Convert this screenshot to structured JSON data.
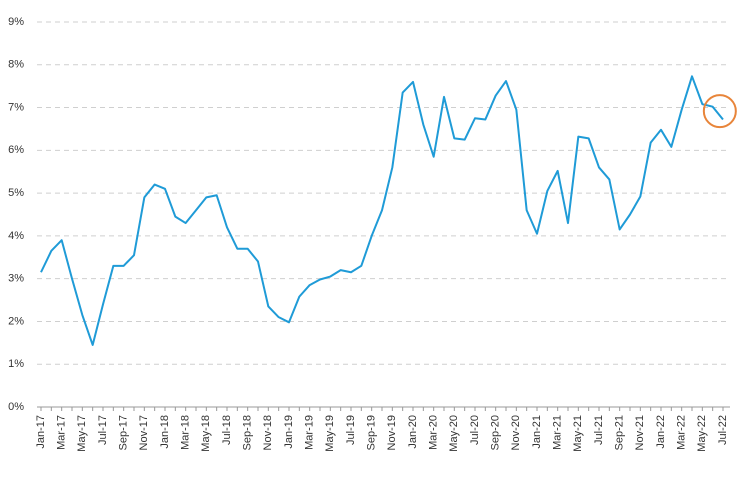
{
  "chart_data": {
    "type": "line",
    "categories": [
      "Jan-17",
      null,
      "Mar-17",
      null,
      "May-17",
      null,
      "Jul-17",
      null,
      "Sep-17",
      null,
      "Nov-17",
      null,
      "Jan-18",
      null,
      "Mar-18",
      null,
      "May-18",
      null,
      "Jul-18",
      null,
      "Sep-18",
      null,
      "Nov-18",
      null,
      "Jan-19",
      null,
      "Mar-19",
      null,
      "May-19",
      null,
      "Jul-19",
      null,
      "Sep-19",
      null,
      "Nov-19",
      null,
      "Jan-20",
      null,
      "Mar-20",
      null,
      "May-20",
      null,
      "Jul-20",
      null,
      "Sep-20",
      null,
      "Nov-20",
      null,
      "Jan-21",
      null,
      "Mar-21",
      null,
      "May-21",
      null,
      "Jul-21",
      null,
      "Sep-21",
      null,
      "Nov-21",
      null,
      "Jan-22",
      null,
      "Mar-22",
      null,
      "May-22",
      null,
      "Jul-22"
    ],
    "values": [
      3.15,
      3.65,
      3.9,
      3.0,
      2.15,
      1.45,
      2.4,
      3.3,
      3.3,
      3.55,
      4.9,
      5.2,
      5.1,
      4.45,
      4.3,
      4.6,
      4.9,
      4.95,
      4.2,
      3.7,
      3.7,
      3.4,
      2.35,
      2.1,
      1.98,
      2.58,
      2.85,
      2.98,
      3.05,
      3.2,
      3.15,
      3.3,
      4.0,
      4.6,
      5.6,
      7.35,
      7.6,
      6.6,
      5.85,
      7.25,
      6.28,
      6.25,
      6.75,
      6.72,
      7.28,
      7.62,
      6.95,
      4.6,
      4.05,
      5.05,
      5.52,
      4.3,
      6.32,
      6.28,
      5.6,
      5.32,
      4.15,
      4.5,
      4.92,
      6.18,
      6.48,
      6.08,
      6.95,
      7.73,
      7.08,
      7.02,
      6.72
    ],
    "color": "#1f9bd7",
    "highlight_color": "#e8853a",
    "ylim": [
      0,
      9
    ],
    "yticks": [
      {
        "value": 0,
        "label": "0%"
      },
      {
        "value": 1,
        "label": "1%"
      },
      {
        "value": 2,
        "label": "2%"
      },
      {
        "value": 3,
        "label": "3%"
      },
      {
        "value": 4,
        "label": "4%"
      },
      {
        "value": 5,
        "label": "5%"
      },
      {
        "value": 6,
        "label": "6%"
      },
      {
        "value": 7,
        "label": "7%"
      },
      {
        "value": 8,
        "label": "8%"
      },
      {
        "value": 9,
        "label": "9%"
      }
    ],
    "grid": true
  }
}
